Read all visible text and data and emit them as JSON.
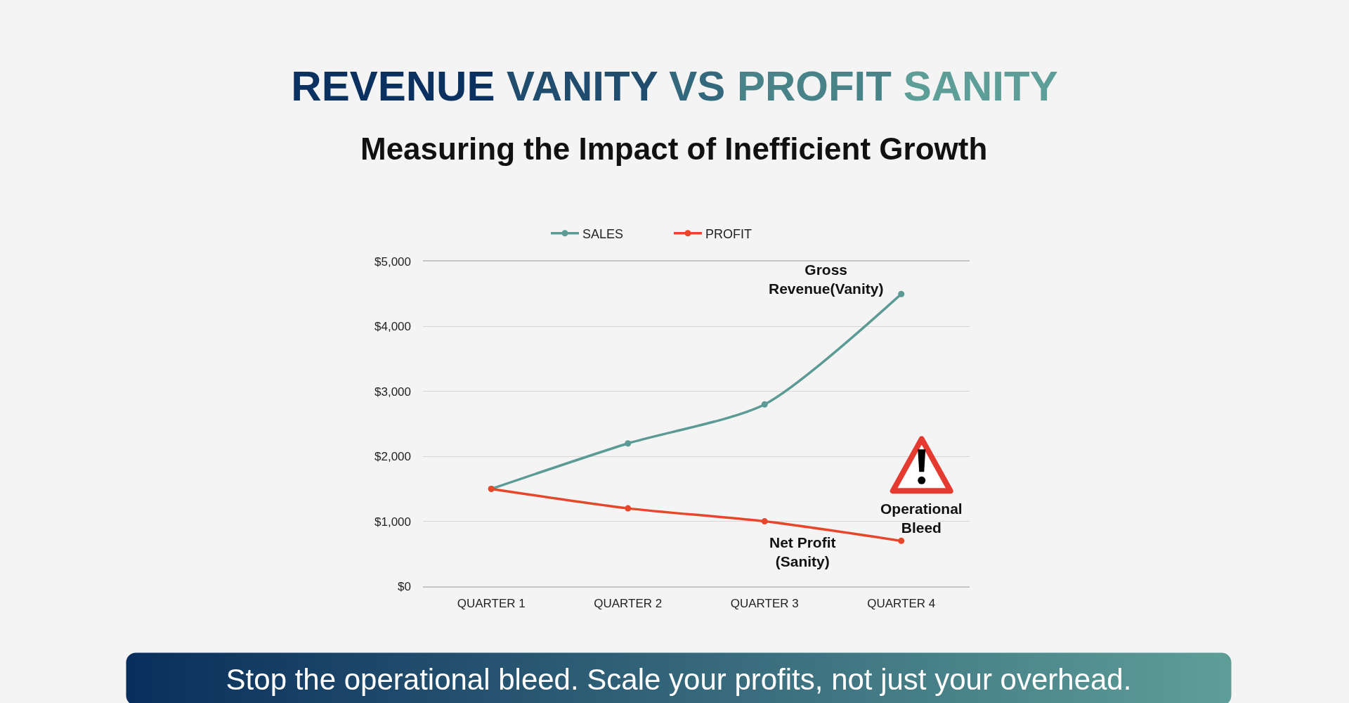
{
  "chart_data": {
    "type": "line",
    "title": "REVENUE VANITY VS PROFIT SANITY",
    "subtitle": "Measuring the Impact of Inefficient Growth",
    "categories": [
      "QUARTER 1",
      "QUARTER 2",
      "QUARTER 3",
      "QUARTER 4"
    ],
    "series": [
      {
        "name": "SALES",
        "color": "#5b9a95",
        "values": [
          1500,
          2200,
          2800,
          4500
        ]
      },
      {
        "name": "PROFIT",
        "color": "#e8462a",
        "values": [
          1500,
          1200,
          1000,
          700
        ]
      }
    ],
    "ylim": [
      0,
      5000
    ],
    "yticks": [
      {
        "value": 0,
        "label": "$0"
      },
      {
        "value": 1000,
        "label": "$1,000"
      },
      {
        "value": 2000,
        "label": "$2,000"
      },
      {
        "value": 3000,
        "label": "$3,000"
      },
      {
        "value": 4000,
        "label": "$4,000"
      },
      {
        "value": 5000,
        "label": "$5,000"
      }
    ],
    "grid": "y",
    "legend": "top",
    "marker": "circle",
    "line_style": "solid",
    "annotations": [
      {
        "text": "Gross\nRevenue(Vanity)",
        "x": "QUARTER 4",
        "y": 4500
      },
      {
        "text": "Net Profit\n(Sanity)",
        "x": "QUARTER 3",
        "y": 1000
      },
      {
        "text": "Operational\nBleed",
        "x": "QUARTER 4",
        "y": 700
      },
      "Stop the operational bleed. Scale your profits, not just your overhead."
    ]
  }
}
